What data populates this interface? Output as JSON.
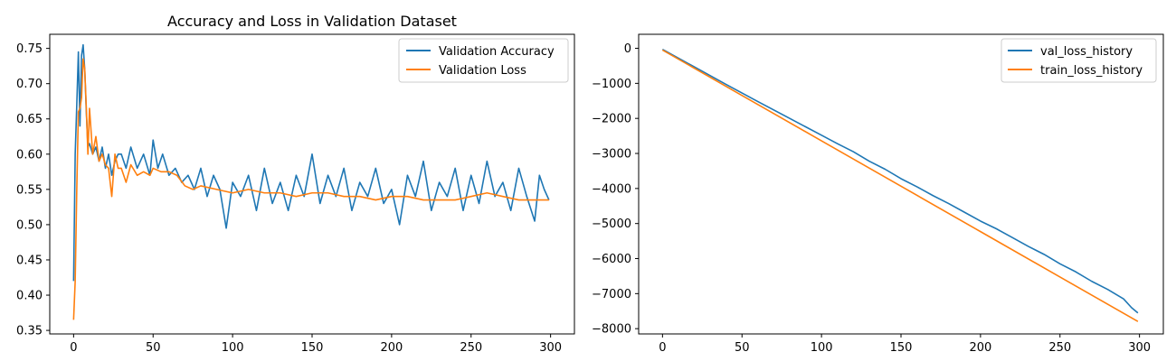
{
  "chart_data": [
    {
      "type": "line",
      "title": "Accuracy and Loss in Validation Dataset",
      "xlabel": "",
      "ylabel": "",
      "xlim": [
        -15,
        315
      ],
      "ylim": [
        0.345,
        0.77
      ],
      "xticks": [
        0,
        50,
        100,
        150,
        200,
        250,
        300
      ],
      "yticks": [
        0.35,
        0.4,
        0.45,
        0.5,
        0.55,
        0.6,
        0.65,
        0.7,
        0.75
      ],
      "ytick_labels": [
        "0.35",
        "0.40",
        "0.45",
        "0.50",
        "0.55",
        "0.60",
        "0.65",
        "0.70",
        "0.75"
      ],
      "grid": false,
      "legend": "top-right",
      "series": [
        {
          "name": "Validation Accuracy",
          "color": "#1f77b4",
          "x": [
            0,
            1,
            2,
            3,
            4,
            5,
            6,
            7,
            8,
            9,
            10,
            12,
            14,
            16,
            18,
            20,
            22,
            24,
            26,
            28,
            30,
            33,
            36,
            40,
            44,
            48,
            50,
            53,
            56,
            60,
            64,
            68,
            72,
            76,
            80,
            84,
            88,
            92,
            96,
            100,
            105,
            110,
            115,
            120,
            125,
            130,
            135,
            140,
            145,
            150,
            155,
            160,
            165,
            170,
            175,
            180,
            185,
            190,
            195,
            200,
            205,
            210,
            215,
            220,
            225,
            230,
            235,
            240,
            245,
            250,
            255,
            260,
            265,
            270,
            275,
            280,
            285,
            290,
            293,
            296,
            299
          ],
          "values": [
            0.42,
            0.6,
            0.67,
            0.745,
            0.64,
            0.74,
            0.755,
            0.72,
            0.66,
            0.61,
            0.615,
            0.6,
            0.61,
            0.59,
            0.61,
            0.58,
            0.6,
            0.57,
            0.59,
            0.6,
            0.6,
            0.58,
            0.61,
            0.58,
            0.6,
            0.57,
            0.62,
            0.58,
            0.6,
            0.57,
            0.58,
            0.56,
            0.57,
            0.55,
            0.58,
            0.54,
            0.57,
            0.55,
            0.495,
            0.56,
            0.54,
            0.57,
            0.52,
            0.58,
            0.53,
            0.56,
            0.52,
            0.57,
            0.54,
            0.6,
            0.53,
            0.57,
            0.54,
            0.58,
            0.52,
            0.56,
            0.54,
            0.58,
            0.53,
            0.55,
            0.5,
            0.57,
            0.54,
            0.59,
            0.52,
            0.56,
            0.54,
            0.58,
            0.52,
            0.57,
            0.53,
            0.59,
            0.54,
            0.56,
            0.52,
            0.58,
            0.54,
            0.505,
            0.57,
            0.55,
            0.535
          ]
        },
        {
          "name": "Validation Loss",
          "color": "#ff7f0e",
          "x": [
            0,
            1,
            2,
            3,
            4,
            5,
            6,
            7,
            8,
            9,
            10,
            12,
            14,
            16,
            18,
            20,
            22,
            24,
            26,
            28,
            30,
            33,
            36,
            40,
            44,
            48,
            50,
            55,
            60,
            65,
            70,
            75,
            80,
            90,
            100,
            110,
            120,
            130,
            140,
            150,
            160,
            170,
            180,
            190,
            200,
            210,
            220,
            230,
            240,
            250,
            260,
            270,
            280,
            290,
            299
          ],
          "values": [
            0.365,
            0.42,
            0.55,
            0.66,
            0.665,
            0.68,
            0.735,
            0.72,
            0.665,
            0.6,
            0.665,
            0.6,
            0.625,
            0.59,
            0.6,
            0.585,
            0.58,
            0.54,
            0.6,
            0.58,
            0.58,
            0.56,
            0.585,
            0.57,
            0.575,
            0.57,
            0.58,
            0.575,
            0.575,
            0.57,
            0.555,
            0.55,
            0.555,
            0.55,
            0.545,
            0.55,
            0.545,
            0.545,
            0.54,
            0.545,
            0.545,
            0.54,
            0.54,
            0.535,
            0.54,
            0.54,
            0.535,
            0.535,
            0.535,
            0.54,
            0.545,
            0.54,
            0.535,
            0.535,
            0.535
          ]
        }
      ]
    },
    {
      "type": "line",
      "title": "",
      "xlabel": "",
      "ylabel": "",
      "xlim": [
        -15,
        315
      ],
      "ylim": [
        -8150,
        400
      ],
      "xticks": [
        0,
        50,
        100,
        150,
        200,
        250,
        300
      ],
      "yticks": [
        0,
        -1000,
        -2000,
        -3000,
        -4000,
        -5000,
        -6000,
        -7000,
        -8000
      ],
      "ytick_labels": [
        "0",
        "−1000",
        "−2000",
        "−3000",
        "−4000",
        "−5000",
        "−6000",
        "−7000",
        "−8000"
      ],
      "grid": false,
      "legend": "top-right",
      "series": [
        {
          "name": "val_loss_history",
          "color": "#1f77b4",
          "x": [
            0,
            20,
            40,
            60,
            80,
            100,
            110,
            120,
            130,
            140,
            150,
            160,
            170,
            180,
            190,
            200,
            210,
            220,
            230,
            240,
            250,
            260,
            270,
            280,
            290,
            295,
            299
          ],
          "values": [
            -30,
            -530,
            -1030,
            -1520,
            -2000,
            -2480,
            -2720,
            -2950,
            -3220,
            -3450,
            -3720,
            -3950,
            -4200,
            -4430,
            -4680,
            -4930,
            -5150,
            -5400,
            -5650,
            -5880,
            -6150,
            -6380,
            -6650,
            -6880,
            -7150,
            -7400,
            -7550
          ]
        },
        {
          "name": "train_loss_history",
          "color": "#ff7f0e",
          "x": [
            0,
            50,
            100,
            150,
            200,
            250,
            299
          ],
          "values": [
            -50,
            -1345,
            -2640,
            -3935,
            -5230,
            -6525,
            -7795
          ]
        }
      ]
    }
  ]
}
